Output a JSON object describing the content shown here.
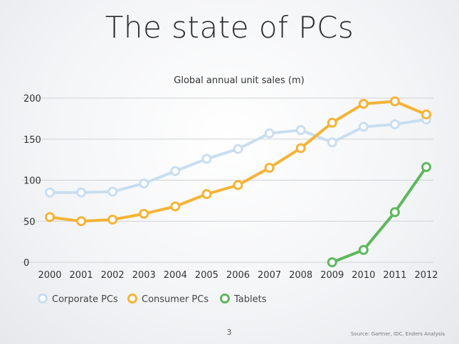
{
  "slide": {
    "title": "The state of PCs",
    "page_number": "3",
    "source": "Source: Gartner, IDC, Enders Analysis"
  },
  "colors": {
    "corporate": "#c8def0",
    "consumer": "#f5b335",
    "tablets": "#5cb85c",
    "grid": "#cfd1d4",
    "text": "#333333"
  },
  "chart_data": {
    "type": "line",
    "title": "Global annual unit sales (m)",
    "xlabel": "",
    "ylabel": "",
    "x": [
      2000,
      2001,
      2002,
      2003,
      2004,
      2005,
      2006,
      2007,
      2008,
      2009,
      2010,
      2011,
      2012
    ],
    "ylim": [
      0,
      200
    ],
    "yticks": [
      0,
      50,
      100,
      150,
      200
    ],
    "grid": true,
    "legend_position": "bottom-left",
    "series": [
      {
        "name": "Corporate PCs",
        "color_key": "corporate",
        "values": [
          85,
          85,
          86,
          96,
          111,
          126,
          138,
          157,
          161,
          146,
          165,
          168,
          174
        ]
      },
      {
        "name": "Consumer PCs",
        "color_key": "consumer",
        "values": [
          55,
          50,
          52,
          59,
          68,
          83,
          94,
          115,
          139,
          170,
          193,
          196,
          180
        ]
      },
      {
        "name": "Tablets",
        "color_key": "tablets",
        "values": [
          null,
          null,
          null,
          null,
          null,
          null,
          null,
          null,
          null,
          0,
          15,
          61,
          116
        ]
      }
    ]
  }
}
